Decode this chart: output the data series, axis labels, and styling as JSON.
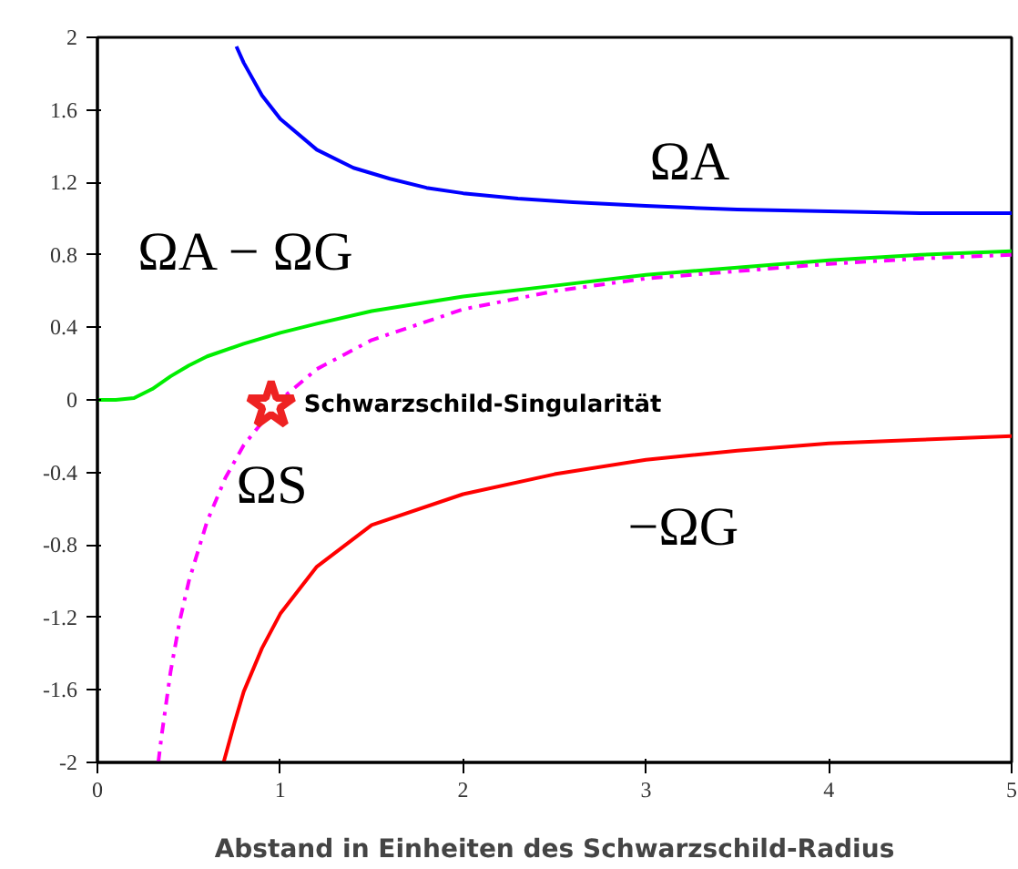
{
  "chart_data": {
    "type": "line",
    "xlabel": "Abstand in Einheiten des Schwarzschild-Radius",
    "xlim": [
      0,
      5
    ],
    "ylim": [
      -2,
      2
    ],
    "xticks": [
      0,
      1,
      2,
      3,
      4,
      5
    ],
    "yticks": [
      {
        "value": -2,
        "label": "-2"
      },
      {
        "value": -1.6,
        "label": "-1.6"
      },
      {
        "value": -1.2,
        "label": "-1.2"
      },
      {
        "value": -0.8,
        "label": "-0.8"
      },
      {
        "value": -0.4,
        "label": "-0.4"
      },
      0,
      0.4,
      0.8,
      1.2,
      1.6,
      2
    ],
    "grid": false,
    "series": [
      {
        "name": "ΩA",
        "color": "#0000ff",
        "line_style": "solid",
        "x": [
          0.76,
          0.8,
          0.9,
          1,
          1.2,
          1.4,
          1.6,
          1.8,
          2,
          2.3,
          2.6,
          3,
          3.5,
          4,
          4.5,
          5
        ],
        "values": [
          1.95,
          1.86,
          1.68,
          1.55,
          1.38,
          1.28,
          1.22,
          1.17,
          1.14,
          1.11,
          1.09,
          1.07,
          1.05,
          1.04,
          1.03,
          1.03
        ]
      },
      {
        "name": "ΩA − ΩG",
        "color": "#00ee00",
        "line_style": "solid",
        "x": [
          0,
          0.1,
          0.2,
          0.3,
          0.4,
          0.5,
          0.6,
          0.8,
          1,
          1.2,
          1.5,
          2,
          2.5,
          3,
          3.5,
          4,
          4.5,
          5
        ],
        "values": [
          0,
          0,
          0.01,
          0.06,
          0.13,
          0.19,
          0.24,
          0.31,
          0.37,
          0.42,
          0.49,
          0.57,
          0.63,
          0.69,
          0.73,
          0.77,
          0.8,
          0.82
        ]
      },
      {
        "name": "ΩS",
        "color": "#ff00ff",
        "line_style": "dashdot",
        "x": [
          0.333,
          0.35,
          0.4,
          0.45,
          0.5,
          0.6,
          0.7,
          0.8,
          1,
          1.2,
          1.5,
          2,
          2.5,
          3,
          3.5,
          4,
          4.5,
          5
        ],
        "values": [
          -2,
          -1.86,
          -1.5,
          -1.22,
          -1,
          -0.67,
          -0.43,
          -0.25,
          0,
          0.17,
          0.33,
          0.5,
          0.6,
          0.67,
          0.71,
          0.75,
          0.78,
          0.8
        ]
      },
      {
        "name": "−ΩG",
        "color": "#ff0000",
        "line_style": "solid",
        "x": [
          0.69,
          0.75,
          0.8,
          0.9,
          1,
          1.2,
          1.5,
          2,
          2.5,
          3,
          3.5,
          4,
          4.5,
          5
        ],
        "values": [
          -2,
          -1.78,
          -1.61,
          -1.37,
          -1.18,
          -0.92,
          -0.69,
          -0.52,
          -0.41,
          -0.33,
          -0.28,
          -0.24,
          -0.22,
          -0.2
        ]
      },
      {
        "type": "scatter",
        "marker": "star",
        "color": "#ee2222",
        "x": [
          0.95
        ],
        "values": [
          -0.03
        ]
      }
    ],
    "annotations": [
      {
        "text": "Schwarzschild-Singularität",
        "x": 0.95,
        "y": -0.03
      }
    ]
  }
}
